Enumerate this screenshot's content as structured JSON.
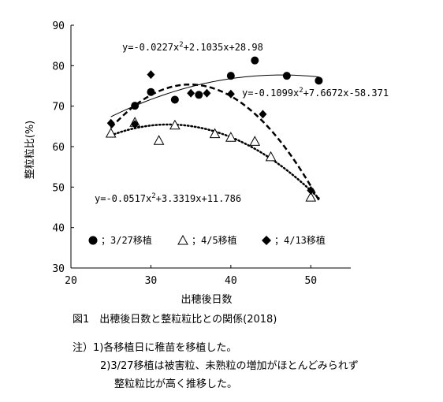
{
  "chart_data": {
    "type": "scatter",
    "title": "",
    "xlabel": "出穂後日数",
    "ylabel": "整粒粒比(%)",
    "xlim": [
      20,
      55
    ],
    "ylim": [
      30,
      90
    ],
    "xticks": [
      20,
      30,
      40,
      50
    ],
    "yticks": [
      30,
      40,
      50,
      60,
      70,
      80,
      90
    ],
    "grid": false,
    "legend_placement": "bottom-left",
    "series": [
      {
        "name": "；3/27移植",
        "marker": "circle",
        "line_style": "solid-thin",
        "x": [
          28,
          30,
          33,
          36,
          40,
          43,
          47,
          51
        ],
        "y": [
          70.1,
          73.5,
          71.6,
          72.8,
          77.5,
          81.3,
          77.5,
          76.3
        ],
        "fit_range": [
          25,
          51
        ],
        "fit": {
          "a": -0.0227,
          "b": 2.1035,
          "c": 28.98
        },
        "equation_parts": [
          "y=-0.0227x",
          "2",
          "+2.1035x+28.98"
        ]
      },
      {
        "name": "；4/5移植",
        "marker": "triangle",
        "line_style": "dotted",
        "x": [
          25,
          28,
          31,
          33,
          38,
          40,
          43,
          45,
          50
        ],
        "y": [
          63.3,
          66.0,
          61.5,
          65.3,
          63.2,
          62.3,
          61.3,
          57.5,
          47.5
        ],
        "fit_range": [
          25,
          51
        ],
        "fit": {
          "a": -0.0517,
          "b": 3.3319,
          "c": 11.786
        },
        "equation_parts": [
          "y=-0.0517x",
          "2",
          "+3.3319x+11.786"
        ]
      },
      {
        "name": "；4/13移植",
        "marker": "diamond",
        "line_style": "dashed",
        "x": [
          25,
          28,
          30,
          35,
          37,
          40,
          44,
          50
        ],
        "y": [
          65.8,
          65.5,
          77.8,
          73.2,
          73.2,
          73.0,
          68.0,
          49.2
        ],
        "fit_range": [
          25,
          51
        ],
        "fit": {
          "a": -0.1099,
          "b": 7.6672,
          "c": -58.371
        },
        "equation_parts": [
          "y=-0.1099x",
          "2",
          "+7.6672x-58.371"
        ]
      }
    ]
  },
  "caption": "図1　出穂後日数と整粒粒比との関係(2018)",
  "notes": {
    "line1": "注）1)各移植日に稚苗を移植した。",
    "line2": "2)3/27移植は被害粒、未熟粒の増加がほとんどみられず",
    "line3": "整粒粒比が高く推移した。"
  }
}
